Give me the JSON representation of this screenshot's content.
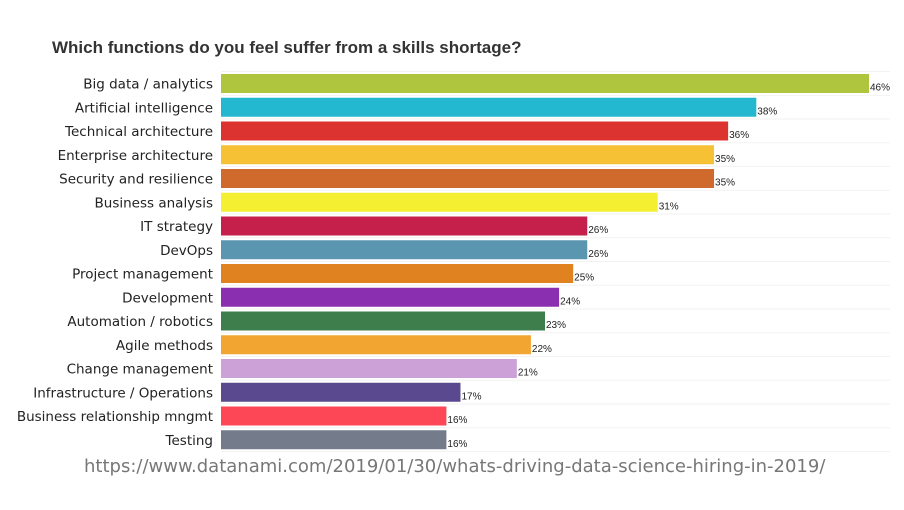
{
  "chart_data": {
    "type": "bar",
    "orientation": "horizontal",
    "title": "Which functions do you feel suffer from a skills shortage?",
    "xlabel": "",
    "ylabel": "",
    "categories": [
      "Big data / analytics",
      "Artificial intelligence",
      "Technical architecture",
      "Enterprise architecture",
      "Security and resilience",
      "Business analysis",
      "IT strategy",
      "DevOps",
      "Project management",
      "Development",
      "Automation / robotics",
      "Agile methods",
      "Change management",
      "Infrastructure / Operations",
      "Business relationship mngmt",
      "Testing"
    ],
    "values": [
      46,
      38,
      36,
      35,
      35,
      31,
      26,
      26,
      25,
      24,
      23,
      22,
      21,
      17,
      16,
      16
    ],
    "value_labels": [
      "46%",
      "38%",
      "36%",
      "35%",
      "35%",
      "31%",
      "26%",
      "26%",
      "25%",
      "24%",
      "23%",
      "22%",
      "21%",
      "17%",
      "16%",
      "16%"
    ],
    "colors": [
      "#b0c53e",
      "#23b8d0",
      "#dc3330",
      "#f6c134",
      "#cf6a2c",
      "#f5ef32",
      "#c4204b",
      "#5a96b0",
      "#e0821f",
      "#8a2fb0",
      "#3e7e4c",
      "#f2a531",
      "#cca1d8",
      "#5a498f",
      "#fd4656",
      "#747b8b"
    ],
    "xlim": [
      0,
      46
    ],
    "grid": false,
    "legend": "none"
  },
  "source": "https://www.datanami.com/2019/01/30/whats-driving-data-science-hiring-in-2019/"
}
